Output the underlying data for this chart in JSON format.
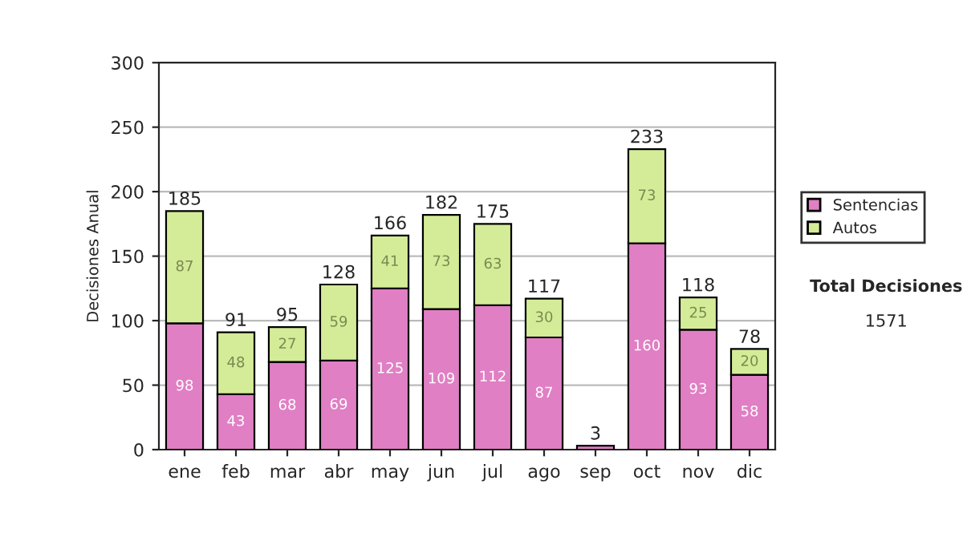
{
  "chart_data": {
    "type": "bar",
    "stacked": true,
    "ylabel": "Decisiones Anual",
    "categories": [
      "ene",
      "feb",
      "mar",
      "abr",
      "may",
      "jun",
      "jul",
      "ago",
      "sep",
      "oct",
      "nov",
      "dic"
    ],
    "series": [
      {
        "name": "Sentencias",
        "color": "#e07fc4",
        "values": [
          98,
          43,
          68,
          69,
          125,
          109,
          112,
          87,
          3,
          160,
          93,
          58
        ],
        "value_labels": [
          "98",
          "43",
          "68",
          "69",
          "125",
          "109",
          "112",
          "87",
          null,
          "160",
          "93",
          "58"
        ]
      },
      {
        "name": "Autos",
        "color": "#d4ec98",
        "values": [
          87,
          48,
          27,
          59,
          41,
          73,
          63,
          30,
          null,
          73,
          25,
          20
        ],
        "value_labels": [
          "87",
          "48",
          "27",
          "59",
          "41",
          "73",
          "63",
          "30",
          null,
          "73",
          "25",
          "20"
        ]
      }
    ],
    "totals": [
      "185",
      "91",
      "95",
      "128",
      "166",
      "182",
      "175",
      "117",
      "3",
      "233",
      "118",
      "78"
    ],
    "ylim": [
      0,
      300
    ],
    "yticks": [
      0,
      50,
      100,
      150,
      200,
      250,
      300
    ],
    "grid": "y",
    "legend": "right",
    "annotations": [
      "Total Decisiones",
      "1571"
    ]
  }
}
